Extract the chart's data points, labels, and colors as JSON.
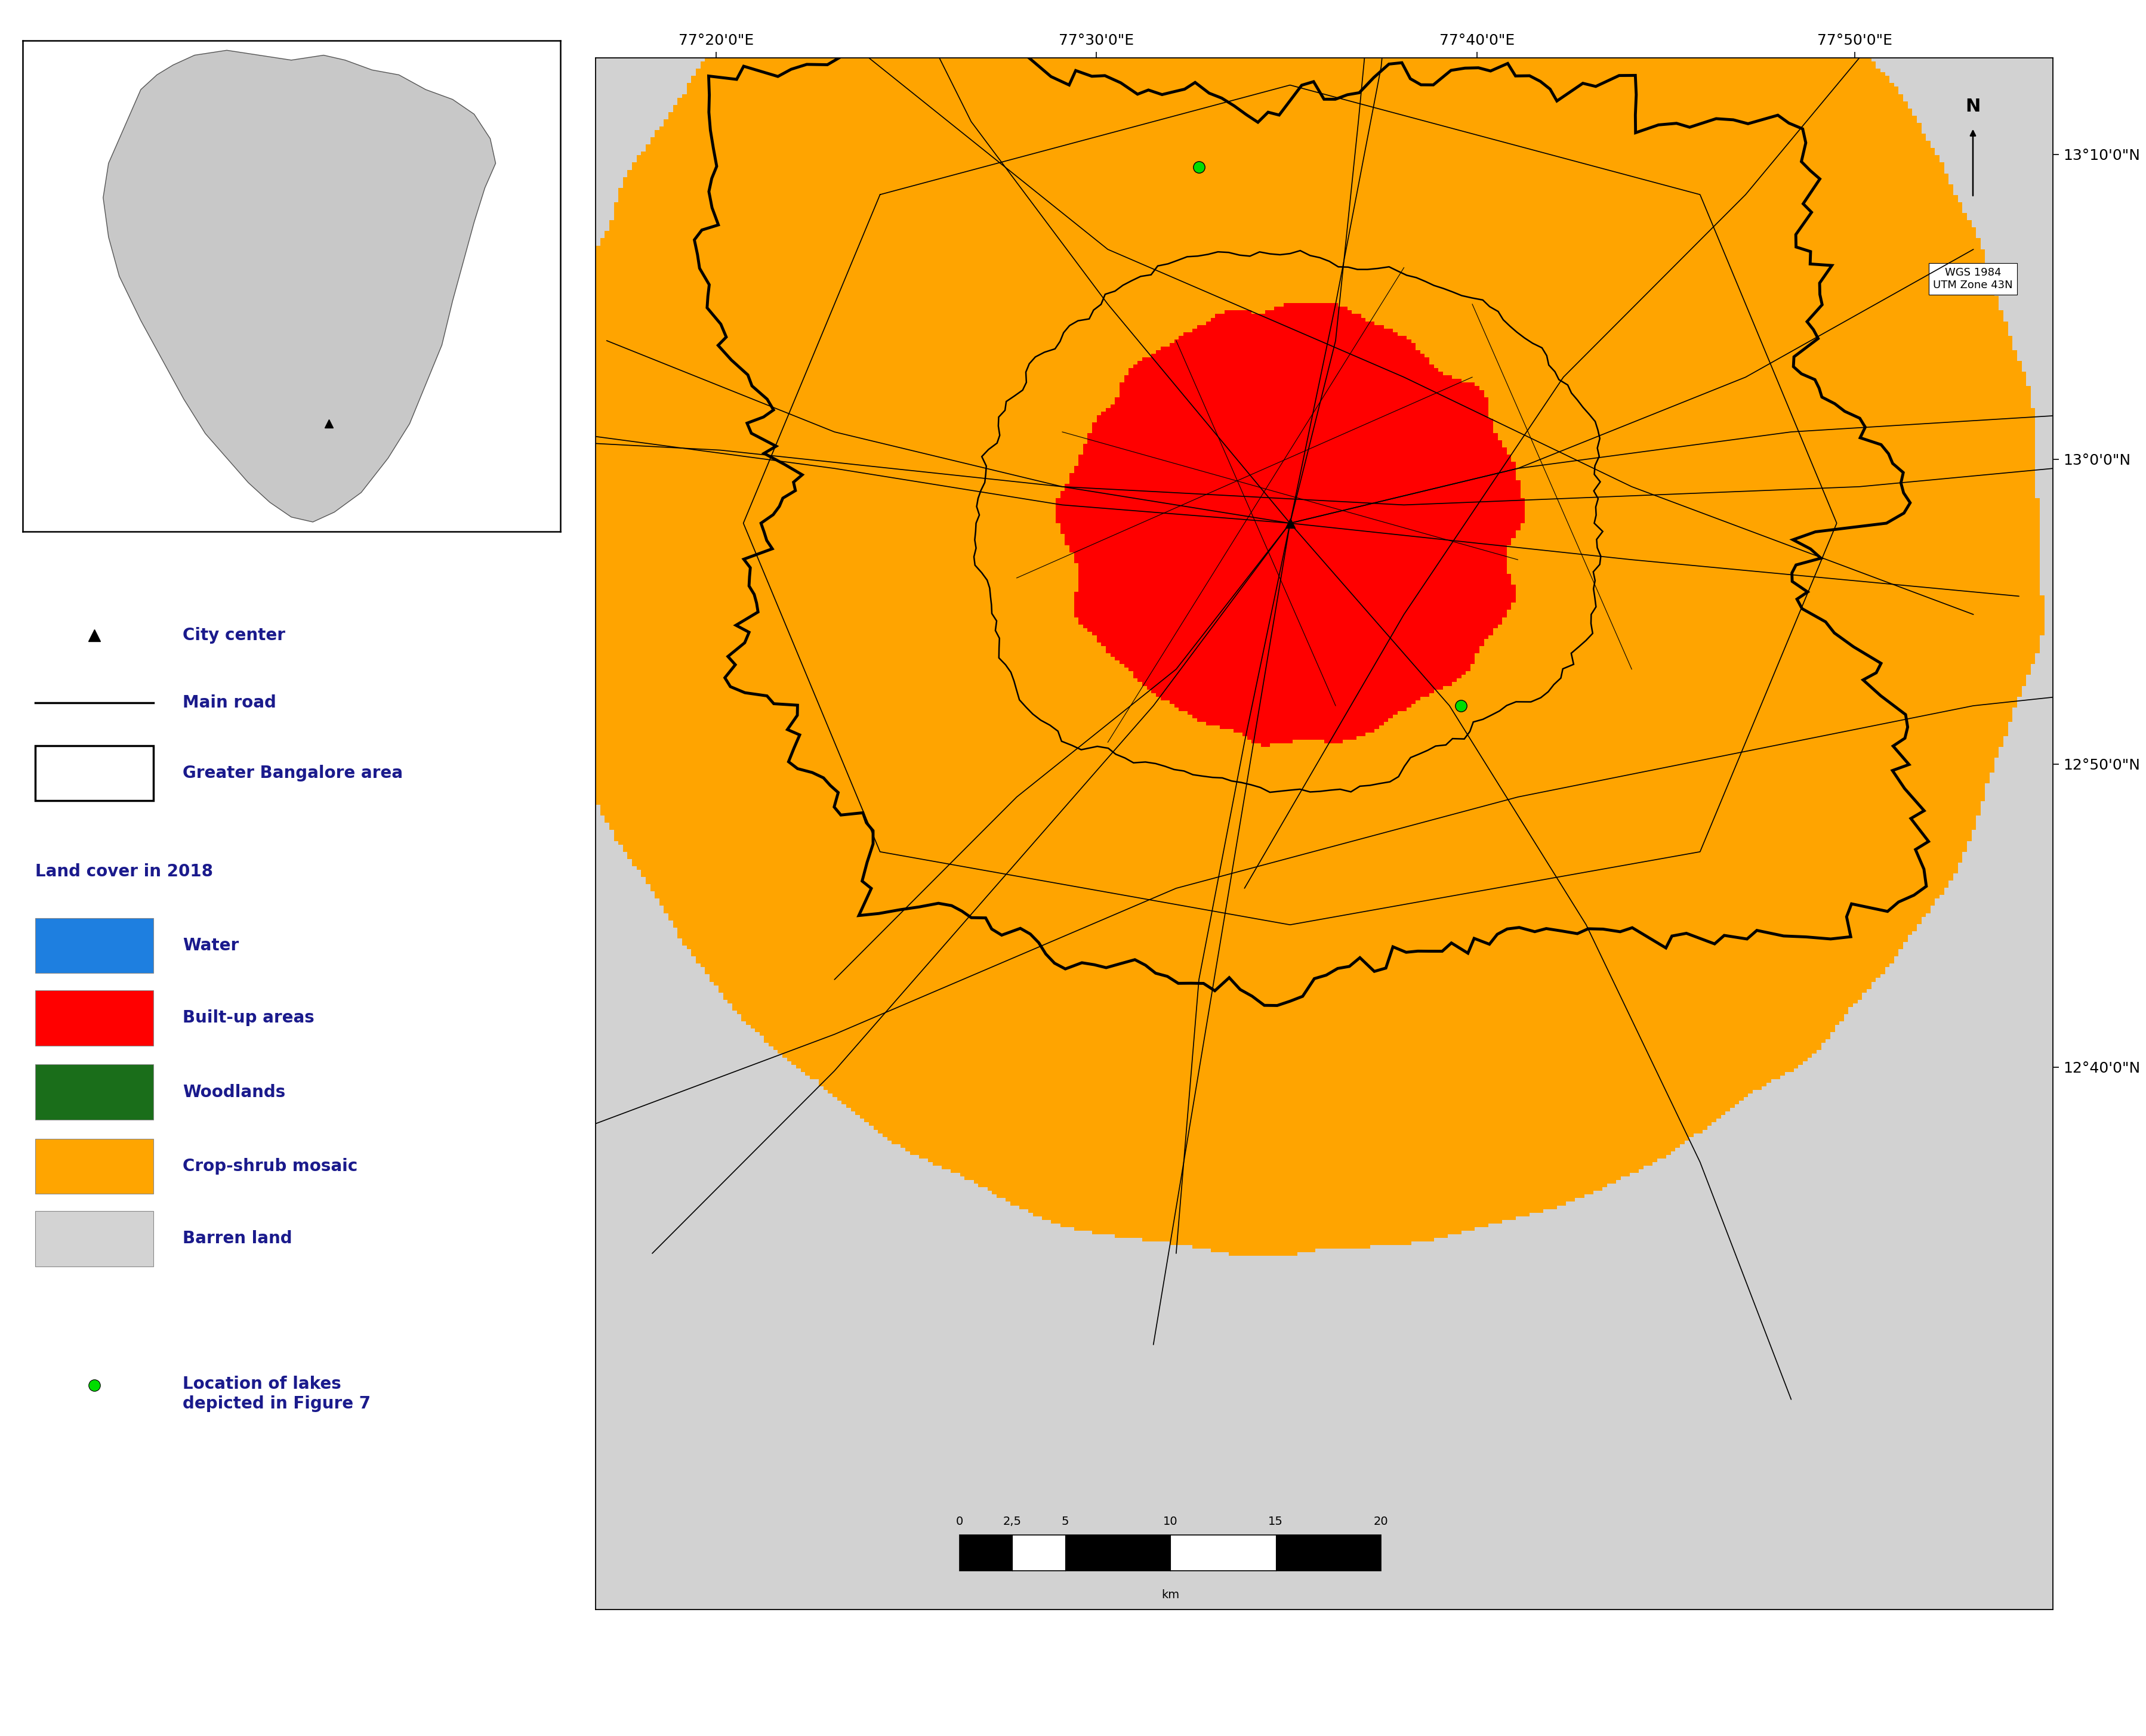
{
  "map_bg_color": "#d3d3d3",
  "land_cover_colors": {
    "Water": "#1e7fe0",
    "Built-up areas": "#ff0000",
    "Woodlands": "#1a6e1a",
    "Crop-shrub mosaic": "#ffa500",
    "Barren land": "#d3d3d3"
  },
  "land_cover_labels": [
    "Water",
    "Built-up areas",
    "Woodlands",
    "Crop-shrub mosaic",
    "Barren land"
  ],
  "legend_title": "Land cover in 2018",
  "city_center_label": "City center",
  "main_road_label": "Main road",
  "greater_bangalore_label": "Greater Bangalore area",
  "lakes_label": "Location of lakes\ndepicted in Figure 7",
  "lakes_color": "#00dd00",
  "north_arrow_text": "N",
  "crs_text": "WGS 1984\nUTM Zone 43N",
  "x_ticks": [
    77.333,
    77.5,
    77.667,
    77.833
  ],
  "x_tick_labels": [
    "77°20'0\"E",
    "77°30'0\"E",
    "77°40'0\"E",
    "77°50'0\"E"
  ],
  "y_ticks": [
    12.667,
    12.833,
    13.0,
    13.167
  ],
  "y_tick_labels": [
    "12°40'0\"N",
    "12°50'0\"N",
    "13°0'0\"N",
    "13°10'0\"N"
  ],
  "map_xlim": [
    77.28,
    77.92
  ],
  "map_ylim": [
    12.37,
    13.22
  ],
  "background_color": "#ffffff",
  "text_color": "#1a1a8c",
  "legend_font_size": 20,
  "tick_font_size": 18
}
